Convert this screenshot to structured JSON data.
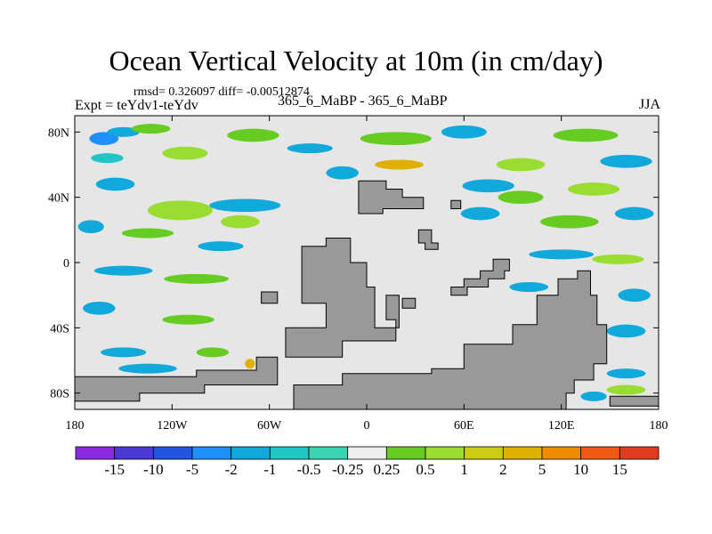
{
  "header": {
    "title": "Ocean Vertical Velocity at 10m (in cm/day)",
    "stats": "rmsd= 0.326097 diff= -0.00512874",
    "experiment": "Expt = teYdv1-teYdv",
    "period": "365_6_MaBP - 365_6_MaBP",
    "season": "JJA"
  },
  "colors": {
    "background_field": "#e6e6e6",
    "land": "#999999",
    "palette": [
      "#8a2be2",
      "#4b39d6",
      "#2155e0",
      "#1e90ff",
      "#11a8db",
      "#22c5c5",
      "#3ad5b0",
      "#eeeeee",
      "#66cc22",
      "#99dd33",
      "#cccc11",
      "#e0b000",
      "#f08c00",
      "#f05a14",
      "#e03c1e"
    ]
  },
  "chart_data": {
    "type": "heatmap",
    "title": "Ocean Vertical Velocity at 10m (in cm/day)",
    "units": "cm/day",
    "xlabel": "",
    "ylabel": "",
    "xlim": [
      -180,
      180
    ],
    "ylim": [
      -90,
      90
    ],
    "x_ticks": [
      {
        "value": -180,
        "label": "180"
      },
      {
        "value": -120,
        "label": "120W"
      },
      {
        "value": -60,
        "label": "60W"
      },
      {
        "value": 0,
        "label": "0"
      },
      {
        "value": 60,
        "label": "60E"
      },
      {
        "value": 120,
        "label": "120E"
      },
      {
        "value": 180,
        "label": "180"
      }
    ],
    "y_ticks": [
      {
        "value": 80,
        "label": "80N"
      },
      {
        "value": 40,
        "label": "40N"
      },
      {
        "value": 0,
        "label": "0"
      },
      {
        "value": -40,
        "label": "40S"
      },
      {
        "value": -80,
        "label": "80S"
      }
    ],
    "colorbar": {
      "labels": [
        "-15",
        "-10",
        "-5",
        "-2",
        "-1",
        "-0.5",
        "-0.25",
        "0.25",
        "0.5",
        "1",
        "2",
        "5",
        "10",
        "15"
      ]
    },
    "land_masses": [
      {
        "name": "large-continent",
        "polygon": [
          [
            -45,
            -75
          ],
          [
            -15,
            -75
          ],
          [
            -15,
            -68
          ],
          [
            40,
            -68
          ],
          [
            40,
            -65
          ],
          [
            60,
            -65
          ],
          [
            60,
            -50
          ],
          [
            90,
            -50
          ],
          [
            90,
            -38
          ],
          [
            105,
            -38
          ],
          [
            105,
            -20
          ],
          [
            118,
            -20
          ],
          [
            118,
            -10
          ],
          [
            130,
            -10
          ],
          [
            130,
            -5
          ],
          [
            138,
            -5
          ],
          [
            138,
            -20
          ],
          [
            142,
            -20
          ],
          [
            142,
            -38
          ],
          [
            148,
            -38
          ],
          [
            148,
            -62
          ],
          [
            140,
            -62
          ],
          [
            140,
            -72
          ],
          [
            128,
            -72
          ],
          [
            128,
            -80
          ],
          [
            123,
            -80
          ],
          [
            123,
            -90
          ],
          [
            -45,
            -90
          ]
        ]
      },
      {
        "name": "west-arm",
        "polygon": [
          [
            -50,
            -40
          ],
          [
            -25,
            -40
          ],
          [
            -25,
            -25
          ],
          [
            -40,
            -25
          ],
          [
            -40,
            10
          ],
          [
            -25,
            10
          ],
          [
            -25,
            15
          ],
          [
            -10,
            15
          ],
          [
            -10,
            0
          ],
          [
            0,
            0
          ],
          [
            0,
            -15
          ],
          [
            5,
            -15
          ],
          [
            5,
            -40
          ],
          [
            20,
            -40
          ],
          [
            20,
            -20
          ],
          [
            12,
            -20
          ],
          [
            12,
            -35
          ],
          [
            18,
            -35
          ],
          [
            18,
            -48
          ],
          [
            -15,
            -48
          ],
          [
            -15,
            -58
          ],
          [
            -50,
            -58
          ]
        ]
      },
      {
        "name": "southern-strip",
        "polygon": [
          [
            -180,
            -70
          ],
          [
            -105,
            -70
          ],
          [
            -105,
            -66
          ],
          [
            -68,
            -66
          ],
          [
            -68,
            -58
          ],
          [
            -55,
            -58
          ],
          [
            -55,
            -75
          ],
          [
            -100,
            -75
          ],
          [
            -100,
            -80
          ],
          [
            -140,
            -80
          ],
          [
            -140,
            -85
          ],
          [
            -180,
            -85
          ]
        ]
      },
      {
        "name": "north-block",
        "polygon": [
          [
            -5,
            50
          ],
          [
            12,
            50
          ],
          [
            12,
            45
          ],
          [
            22,
            45
          ],
          [
            22,
            40
          ],
          [
            35,
            40
          ],
          [
            35,
            33
          ],
          [
            10,
            33
          ],
          [
            10,
            30
          ],
          [
            -5,
            30
          ]
        ]
      },
      {
        "name": "east-ridge",
        "polygon": [
          [
            78,
            2
          ],
          [
            88,
            2
          ],
          [
            88,
            -5
          ],
          [
            85,
            -5
          ],
          [
            85,
            -10
          ],
          [
            75,
            -10
          ],
          [
            75,
            -15
          ],
          [
            62,
            -15
          ],
          [
            62,
            -20
          ],
          [
            52,
            -20
          ],
          [
            52,
            -15
          ],
          [
            60,
            -15
          ],
          [
            60,
            -10
          ],
          [
            70,
            -10
          ],
          [
            70,
            -5
          ],
          [
            78,
            -5
          ]
        ]
      },
      {
        "name": "small-island-a",
        "polygon": [
          [
            32,
            20
          ],
          [
            40,
            20
          ],
          [
            40,
            12
          ],
          [
            44,
            12
          ],
          [
            44,
            8
          ],
          [
            36,
            8
          ],
          [
            36,
            12
          ],
          [
            32,
            12
          ]
        ]
      },
      {
        "name": "small-island-b",
        "polygon": [
          [
            -65,
            -18
          ],
          [
            -55,
            -18
          ],
          [
            -55,
            -25
          ],
          [
            -65,
            -25
          ]
        ]
      },
      {
        "name": "small-island-c",
        "polygon": [
          [
            22,
            -22
          ],
          [
            30,
            -22
          ],
          [
            30,
            -28
          ],
          [
            22,
            -28
          ]
        ]
      },
      {
        "name": "small-island-d",
        "polygon": [
          [
            150,
            -82
          ],
          [
            180,
            -82
          ],
          [
            180,
            -88
          ],
          [
            150,
            -88
          ]
        ]
      },
      {
        "name": "small-island-e",
        "polygon": [
          [
            52,
            38
          ],
          [
            58,
            38
          ],
          [
            58,
            33
          ],
          [
            52,
            33
          ]
        ]
      }
    ],
    "anomaly_regions": [
      {
        "band": 3,
        "lon": -162,
        "lat": 76,
        "rx": 9,
        "ry": 4
      },
      {
        "band": 4,
        "lon": -150,
        "lat": 80,
        "rx": 10,
        "ry": 3
      },
      {
        "band": 8,
        "lon": -133,
        "lat": 82,
        "rx": 12,
        "ry": 3
      },
      {
        "band": 5,
        "lon": -160,
        "lat": 64,
        "rx": 10,
        "ry": 3
      },
      {
        "band": 9,
        "lon": -112,
        "lat": 67,
        "rx": 14,
        "ry": 4
      },
      {
        "band": 8,
        "lon": -70,
        "lat": 78,
        "rx": 16,
        "ry": 4
      },
      {
        "band": 4,
        "lon": -35,
        "lat": 70,
        "rx": 14,
        "ry": 3
      },
      {
        "band": 8,
        "lon": 18,
        "lat": 76,
        "rx": 22,
        "ry": 4
      },
      {
        "band": 4,
        "lon": 60,
        "lat": 80,
        "rx": 14,
        "ry": 4
      },
      {
        "band": 8,
        "lon": 135,
        "lat": 78,
        "rx": 20,
        "ry": 4
      },
      {
        "band": 4,
        "lon": 160,
        "lat": 62,
        "rx": 16,
        "ry": 4
      },
      {
        "band": 11,
        "lon": 20,
        "lat": 60,
        "rx": 15,
        "ry": 3
      },
      {
        "band": 9,
        "lon": 95,
        "lat": 60,
        "rx": 15,
        "ry": 4
      },
      {
        "band": 4,
        "lon": -155,
        "lat": 48,
        "rx": 12,
        "ry": 4
      },
      {
        "band": 4,
        "lon": -15,
        "lat": 55,
        "rx": 10,
        "ry": 4
      },
      {
        "band": 9,
        "lon": -115,
        "lat": 32,
        "rx": 20,
        "ry": 6
      },
      {
        "band": 4,
        "lon": -75,
        "lat": 35,
        "rx": 22,
        "ry": 4
      },
      {
        "band": 9,
        "lon": -78,
        "lat": 25,
        "rx": 12,
        "ry": 4
      },
      {
        "band": 4,
        "lon": 75,
        "lat": 47,
        "rx": 16,
        "ry": 4
      },
      {
        "band": 8,
        "lon": 95,
        "lat": 40,
        "rx": 14,
        "ry": 4
      },
      {
        "band": 9,
        "lon": 140,
        "lat": 45,
        "rx": 16,
        "ry": 4
      },
      {
        "band": 4,
        "lon": 70,
        "lat": 30,
        "rx": 12,
        "ry": 4
      },
      {
        "band": 8,
        "lon": 125,
        "lat": 25,
        "rx": 18,
        "ry": 4
      },
      {
        "band": 4,
        "lon": 165,
        "lat": 30,
        "rx": 12,
        "ry": 4
      },
      {
        "band": 4,
        "lon": -170,
        "lat": 22,
        "rx": 8,
        "ry": 4
      },
      {
        "band": 8,
        "lon": -135,
        "lat": 18,
        "rx": 16,
        "ry": 3
      },
      {
        "band": 4,
        "lon": -90,
        "lat": 10,
        "rx": 14,
        "ry": 3
      },
      {
        "band": 4,
        "lon": -150,
        "lat": -5,
        "rx": 18,
        "ry": 3
      },
      {
        "band": 8,
        "lon": -105,
        "lat": -10,
        "rx": 20,
        "ry": 3
      },
      {
        "band": 4,
        "lon": 120,
        "lat": 5,
        "rx": 20,
        "ry": 3
      },
      {
        "band": 9,
        "lon": 155,
        "lat": 2,
        "rx": 16,
        "ry": 3
      },
      {
        "band": 4,
        "lon": 100,
        "lat": -15,
        "rx": 12,
        "ry": 3
      },
      {
        "band": 4,
        "lon": 165,
        "lat": -20,
        "rx": 10,
        "ry": 4
      },
      {
        "band": 4,
        "lon": -165,
        "lat": -28,
        "rx": 10,
        "ry": 4
      },
      {
        "band": 8,
        "lon": -110,
        "lat": -35,
        "rx": 16,
        "ry": 3
      },
      {
        "band": 4,
        "lon": 160,
        "lat": -42,
        "rx": 12,
        "ry": 4
      },
      {
        "band": 4,
        "lon": -150,
        "lat": -55,
        "rx": 14,
        "ry": 3
      },
      {
        "band": 8,
        "lon": -95,
        "lat": -55,
        "rx": 10,
        "ry": 3
      },
      {
        "band": 4,
        "lon": -135,
        "lat": -65,
        "rx": 18,
        "ry": 3
      },
      {
        "band": 8,
        "lon": -170,
        "lat": -80,
        "rx": 10,
        "ry": 3
      },
      {
        "band": 4,
        "lon": 140,
        "lat": -82,
        "rx": 8,
        "ry": 3
      },
      {
        "band": 9,
        "lon": 160,
        "lat": -78,
        "rx": 12,
        "ry": 3
      },
      {
        "band": 4,
        "lon": 160,
        "lat": -68,
        "rx": 12,
        "ry": 3
      },
      {
        "band": 11,
        "lon": -72,
        "lat": -62,
        "rx": 3,
        "ry": 3
      }
    ]
  }
}
